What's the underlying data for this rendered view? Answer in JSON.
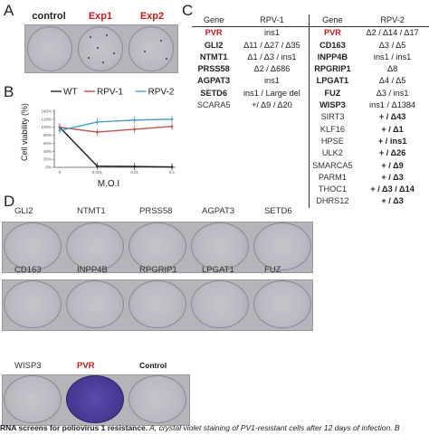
{
  "panels": {
    "a": "A",
    "b": "B",
    "c": "C",
    "d": "D"
  },
  "panel_a": {
    "labels": [
      "control",
      "Exp1",
      "Exp2"
    ],
    "label_colors": [
      "#111111",
      "#d0161b",
      "#d0161b"
    ]
  },
  "chart_data": {
    "type": "line",
    "x": [
      "0",
      "0.001",
      "0.01",
      "0.1"
    ],
    "xlabel": "M.O.I",
    "ylabel": "Cell viability (%)",
    "ylim": [
      0,
      140
    ],
    "yticks": [
      "0%",
      "20%",
      "40%",
      "60%",
      "80%",
      "100%",
      "120%",
      "140%"
    ],
    "legend": "top",
    "series": [
      {
        "name": "WT",
        "color": "#222222",
        "values": [
          100,
          3,
          2,
          1
        ]
      },
      {
        "name": "RPV-1",
        "color": "#c0504d",
        "values": [
          100,
          88,
          95,
          102
        ]
      },
      {
        "name": "RPV-2",
        "color": "#4a9bd4",
        "values": [
          92,
          113,
          118,
          120
        ]
      }
    ]
  },
  "panel_c": {
    "headers": {
      "gene": "Gene",
      "rpv1": "RPV-1",
      "rpv2": "RPV-2"
    },
    "rpv1": [
      {
        "gene": "PVR",
        "value": "ins1",
        "style": "red"
      },
      {
        "gene": "GLI2",
        "value": "Δ11 / Δ27 / Δ35",
        "style": "bold"
      },
      {
        "gene": "NTMT1",
        "value": "Δ1 / Δ3 / ins1",
        "style": "bold"
      },
      {
        "gene": "PRSS58",
        "value": "Δ2 / Δ686",
        "style": "bold"
      },
      {
        "gene": "AGPAT3",
        "value": "ins1",
        "style": "bold"
      },
      {
        "gene": "SETD6",
        "value": "ins1 / Large del",
        "style": "bold"
      },
      {
        "gene": "SCARA5",
        "value": "+/ Δ9 / Δ20",
        "style": "plain"
      }
    ],
    "rpv2": [
      {
        "gene": "PVR",
        "value": "Δ2 / Δ14 / Δ17",
        "style": "red"
      },
      {
        "gene": "CD163",
        "value": "Δ3 / Δ5",
        "style": "bold"
      },
      {
        "gene": "INPP4B",
        "value": "ins1 / ins1",
        "style": "bold"
      },
      {
        "gene": "RPGRIP1",
        "value": "Δ8",
        "style": "bold"
      },
      {
        "gene": "LPGAT1",
        "value": "Δ4 / Δ5",
        "style": "bold"
      },
      {
        "gene": "FUZ",
        "value": "Δ3 / ins1",
        "style": "bold"
      },
      {
        "gene": "WISP3",
        "value": "ins1 / Δ1384",
        "style": "bold"
      },
      {
        "gene": "SIRT3",
        "value": "+ / Δ43",
        "style": "plain"
      },
      {
        "gene": "KLF16",
        "value": "+ / Δ1",
        "style": "plain"
      },
      {
        "gene": "HPSE",
        "value": "+ / ins1",
        "style": "plain"
      },
      {
        "gene": "ULK2",
        "value": "+ / Δ26",
        "style": "plain"
      },
      {
        "gene": "SMARCA5",
        "value": "+ / Δ9",
        "style": "plain"
      },
      {
        "gene": "PARM1",
        "value": "+ / Δ3",
        "style": "plain"
      },
      {
        "gene": "THOC1",
        "value": "+ / Δ3 / Δ14",
        "style": "plain"
      },
      {
        "gene": "DHRS12",
        "value": "+ / Δ3",
        "style": "plain"
      }
    ]
  },
  "panel_d": {
    "row1": [
      "GLI2",
      "NTMT1",
      "PRSS58",
      "AGPAT3",
      "SETD6"
    ],
    "row2": [
      "CD163",
      "INPP4B",
      "RPGRIP1",
      "LPGAT1",
      "FUZ"
    ],
    "row3": [
      "WISP3",
      "PVR",
      "Control"
    ]
  },
  "caption": {
    "bold": "RNA screens for poliovirus 1 resistance.",
    "text": " A, crystal violet staining of PV1-resistant cells after 12 days of infection. B"
  }
}
